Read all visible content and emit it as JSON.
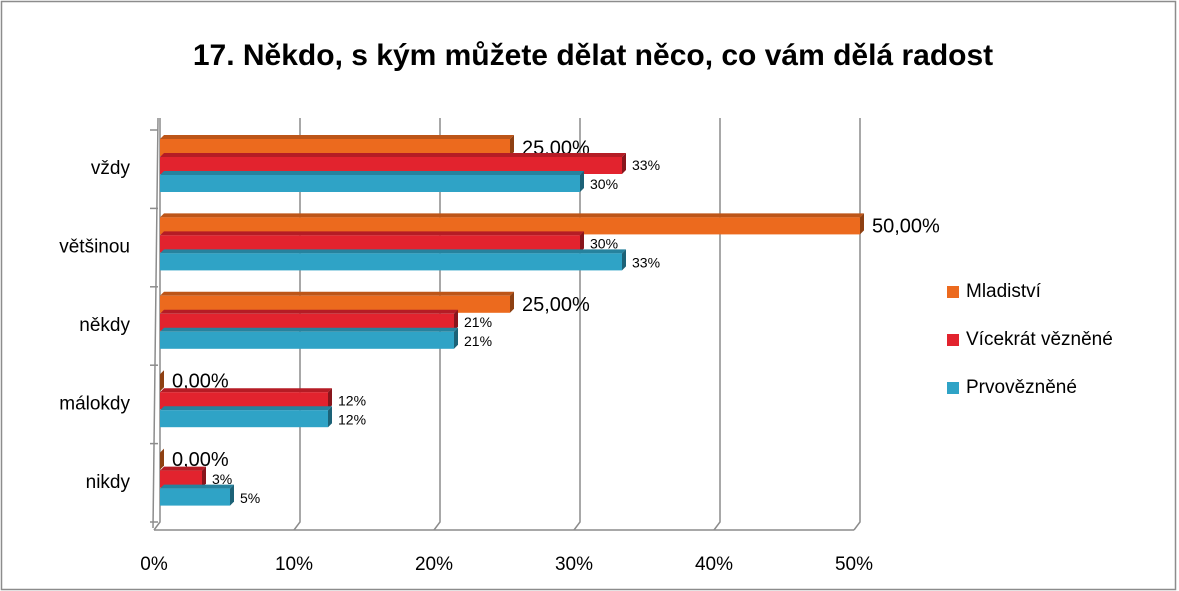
{
  "chart_data": {
    "type": "bar",
    "title": "17. Někdo, s kým můžete dělat něco, co vám dělá radost",
    "categories": [
      "vždy",
      "většinou",
      "někdy",
      "málokdy",
      "nikdy"
    ],
    "series": [
      {
        "name": "Mladiství",
        "color": "#ec6a1e",
        "values": [
          25,
          50,
          25,
          0,
          0
        ],
        "value_labels": [
          "25,00%",
          "50,00%",
          "25,00%",
          "0,00%",
          "0,00%"
        ]
      },
      {
        "name": "Vícekrát vězněné",
        "color": "#e2232e",
        "values": [
          33,
          30,
          21,
          12,
          3
        ],
        "value_labels": [
          "33%",
          "30%",
          "21%",
          "12%",
          "3%"
        ]
      },
      {
        "name": "Prvovězněné",
        "color": "#2fa3c6",
        "values": [
          30,
          33,
          21,
          12,
          5
        ],
        "value_labels": [
          "30%",
          "33%",
          "21%",
          "12%",
          "5%"
        ]
      }
    ],
    "xlim": [
      0,
      50
    ],
    "xticks": [
      {
        "value": 0,
        "label": "0%"
      },
      {
        "value": 10,
        "label": "10%"
      },
      {
        "value": 20,
        "label": "20%"
      },
      {
        "value": 30,
        "label": "30%"
      },
      {
        "value": 40,
        "label": "40%"
      },
      {
        "value": 50,
        "label": "50%"
      }
    ],
    "grid": true,
    "legend": "right"
  }
}
